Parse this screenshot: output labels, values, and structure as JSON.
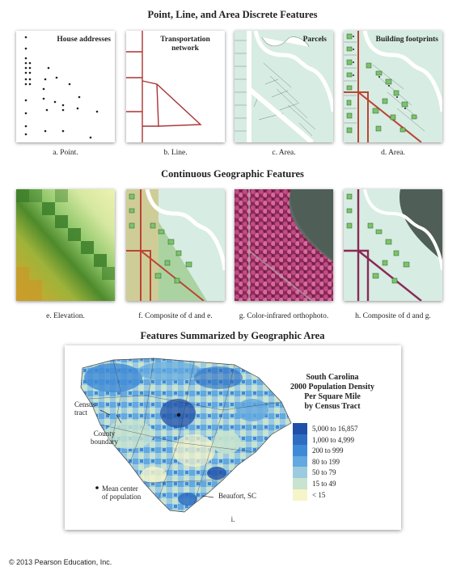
{
  "sections": {
    "discrete_title": "Point, Line, and Area Discrete Features",
    "continuous_title": "Continuous Geographic Features",
    "summary_title": "Features Summarized by Geographic Area"
  },
  "panels": {
    "a": {
      "label": "House addresses",
      "caption": "a. Point."
    },
    "b": {
      "label": "Transportation network",
      "caption": "b. Line."
    },
    "c": {
      "label": "Parcels",
      "caption": "c. Area."
    },
    "d": {
      "label": "Building footprints",
      "caption": "d. Area."
    },
    "e": {
      "caption": "e. Elevation."
    },
    "f": {
      "caption": "f. Composite of d and e."
    },
    "g": {
      "caption": "g. Color-infrared orthophoto."
    },
    "h": {
      "caption": "h. Composite of d and g."
    }
  },
  "map": {
    "caption": "i.",
    "legend_title_1": "South Carolina",
    "legend_title_2": "2000 Population Density",
    "legend_title_3": "Per Square Mile",
    "legend_title_4": "by Census Tract",
    "legend": [
      {
        "label": "5,000 to 16,857",
        "color": "#1f4fa8"
      },
      {
        "label": "1,000 to 4,999",
        "color": "#2d6ec2"
      },
      {
        "label": "200 to 999",
        "color": "#3f8ad6"
      },
      {
        "label": "80 to 199",
        "color": "#63a8e0"
      },
      {
        "label": "50 to 79",
        "color": "#9ccbe0"
      },
      {
        "label": "15 to 49",
        "color": "#c8e3cf"
      },
      {
        "label": "< 15",
        "color": "#f6f4c9"
      }
    ],
    "annotations": {
      "census_tract_1": "Census",
      "census_tract_2": "tract",
      "county_boundary_1": "County",
      "county_boundary_2": "boundary",
      "mean_center_1": "Mean center",
      "mean_center_2": "of population",
      "beaufort": "Beaufort, SC"
    }
  },
  "copyright": "© 2013 Pearson Education, Inc."
}
